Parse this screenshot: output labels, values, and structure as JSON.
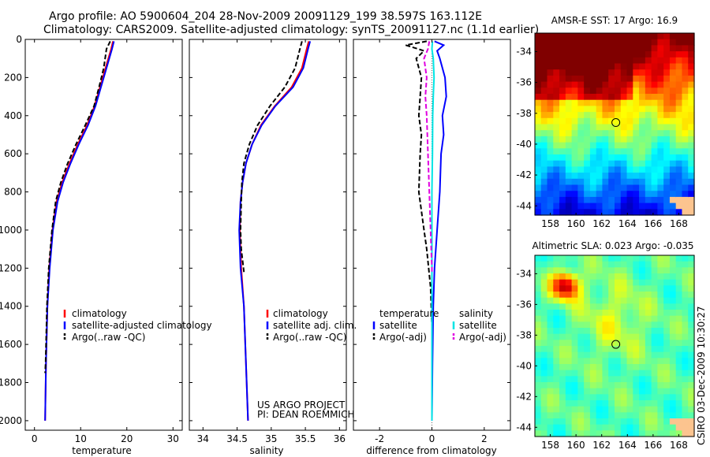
{
  "header": {
    "line1": "Argo profile: AO 5900604_204 28-Nov-2009 20091129_199 38.597S 163.112E",
    "line2": "Climatology: CARS2009. Satellite-adjusted climatology: synTS_20091127.nc (1.1d earlier)"
  },
  "side_label": "CSIRO 03-Dec-2009 10:30:27",
  "project": {
    "line1": "US ARGO PROJECT",
    "line2": "PI: DEAN ROEMMICH"
  },
  "colors": {
    "climatology": "#ff0000",
    "satellite": "#0000ff",
    "argo": "#000000",
    "sal_satellite": "#00e5e5",
    "sal_argo": "#e000e0"
  },
  "chart_data": [
    {
      "type": "line",
      "id": "temperature",
      "xlabel": "temperature",
      "xlim": [
        -2,
        32
      ],
      "ylim": [
        0,
        2050
      ],
      "xticks": [
        0,
        10,
        20,
        30
      ],
      "yticks": [
        0,
        200,
        400,
        600,
        800,
        1000,
        1200,
        1400,
        1600,
        1800,
        2000
      ],
      "legend": [
        "climatology",
        "satellite-adjusted climatology",
        "Argo(..raw -QC)"
      ],
      "series": [
        {
          "name": "climatology",
          "color": "#ff0000",
          "dash": "",
          "x": [
            17.0,
            16.6,
            15.4,
            14.2,
            13.0,
            11.4,
            9.4,
            7.6,
            6.0,
            4.8,
            3.9,
            3.2,
            2.8,
            2.5,
            2.3
          ],
          "y": [
            10,
            50,
            150,
            250,
            350,
            450,
            550,
            650,
            750,
            850,
            1000,
            1200,
            1400,
            1700,
            2000
          ]
        },
        {
          "name": "satellite-adjusted climatology",
          "color": "#0000ff",
          "dash": "",
          "x": [
            17.2,
            16.8,
            15.6,
            14.4,
            13.2,
            11.6,
            9.6,
            7.8,
            6.2,
            5.0,
            4.0,
            3.3,
            2.8,
            2.5,
            2.3
          ],
          "y": [
            10,
            50,
            150,
            250,
            350,
            450,
            550,
            650,
            750,
            850,
            1000,
            1200,
            1400,
            1700,
            2000
          ]
        },
        {
          "name": "Argo(..raw -QC)",
          "color": "#000000",
          "dash": "6,3",
          "x": [
            16.4,
            15.6,
            15.0,
            14.0,
            12.9,
            11.0,
            9.0,
            7.2,
            5.7,
            4.6,
            3.8,
            3.1,
            2.7,
            2.4,
            2.3
          ],
          "y": [
            10,
            50,
            150,
            250,
            350,
            450,
            550,
            650,
            750,
            850,
            1000,
            1200,
            1400,
            1700,
            1750
          ]
        }
      ]
    },
    {
      "type": "line",
      "id": "salinity",
      "xlabel": "salinity",
      "xlim": [
        33.8,
        36.1
      ],
      "ylim": [
        0,
        2050
      ],
      "xticks": [
        34,
        34.5,
        35,
        35.5,
        36
      ],
      "yticks": [
        0,
        200,
        400,
        600,
        800,
        1000,
        1200,
        1400,
        1600,
        1800,
        2000
      ],
      "legend": [
        "climatology",
        "satellite adj. clim.",
        "Argo(..raw -QC)"
      ],
      "series": [
        {
          "name": "climatology",
          "color": "#ff0000",
          "dash": "",
          "x": [
            35.55,
            35.52,
            35.45,
            35.3,
            35.05,
            34.85,
            34.72,
            34.63,
            34.58,
            34.55,
            34.54,
            34.56,
            34.6,
            34.63,
            34.66
          ],
          "y": [
            10,
            50,
            150,
            250,
            350,
            450,
            550,
            650,
            750,
            850,
            1000,
            1200,
            1400,
            1700,
            2000
          ]
        },
        {
          "name": "satellite adj. clim.",
          "color": "#0000ff",
          "dash": "",
          "x": [
            35.57,
            35.54,
            35.47,
            35.32,
            35.06,
            34.86,
            34.72,
            34.63,
            34.58,
            34.55,
            34.53,
            34.55,
            34.6,
            34.63,
            34.66
          ],
          "y": [
            10,
            50,
            150,
            250,
            350,
            450,
            550,
            650,
            750,
            850,
            1000,
            1200,
            1400,
            1700,
            2000
          ]
        },
        {
          "name": "Argo(..raw -QC)",
          "color": "#000000",
          "dash": "6,3",
          "x": [
            35.45,
            35.42,
            35.35,
            35.2,
            34.98,
            34.8,
            34.68,
            34.6,
            34.57,
            34.56,
            34.55,
            34.56,
            34.6
          ],
          "y": [
            10,
            50,
            150,
            250,
            350,
            450,
            550,
            650,
            750,
            850,
            1000,
            1100,
            1220
          ]
        }
      ]
    },
    {
      "type": "line",
      "id": "difference",
      "xlabel": "difference from climatology",
      "xlim": [
        -3,
        3
      ],
      "ylim": [
        0,
        2050
      ],
      "xticks": [
        -2,
        0,
        2
      ],
      "yticks": [
        0,
        200,
        400,
        600,
        800,
        1000,
        1200,
        1400,
        1600,
        1800,
        2000
      ],
      "legend_temperature": {
        "title": "temperature",
        "items": [
          "satellite",
          "Argo(-adj)"
        ]
      },
      "legend_salinity": {
        "title": "salinity",
        "items": [
          "satellite",
          "Argo(-adj)"
        ]
      },
      "series": [
        {
          "name": "temperature satellite",
          "color": "#0000ff",
          "dash": "",
          "x": [
            0.1,
            0.45,
            0.2,
            0.3,
            0.5,
            0.55,
            0.4,
            0.45,
            0.35,
            0.3,
            0.2,
            0.1,
            0.05,
            0.02,
            0.0
          ],
          "y": [
            10,
            30,
            60,
            100,
            200,
            300,
            400,
            500,
            600,
            800,
            1000,
            1200,
            1400,
            1700,
            2000
          ]
        },
        {
          "name": "temperature Argo(-adj)",
          "color": "#000000",
          "dash": "6,3",
          "x": [
            -0.2,
            -1.0,
            -0.3,
            -0.6,
            -0.4,
            -0.45,
            -0.5,
            -0.4,
            -0.45,
            -0.5,
            -0.4,
            -0.3,
            -0.2,
            -0.05,
            0.0
          ],
          "y": [
            10,
            30,
            60,
            100,
            200,
            300,
            400,
            500,
            600,
            800,
            900,
            1000,
            1100,
            1300,
            1500
          ]
        },
        {
          "name": "salinity satellite",
          "color": "#00e5e5",
          "dash": "",
          "x": [
            0.02,
            0.0,
            0.05,
            0.08,
            0.05,
            0.03,
            0.02,
            0.0,
            0.0,
            0.0,
            0.0,
            0.0
          ],
          "y": [
            10,
            50,
            100,
            200,
            300,
            400,
            600,
            800,
            1000,
            1400,
            1800,
            2000
          ]
        },
        {
          "name": "salinity Argo(-adj)",
          "color": "#e000e0",
          "dash": "6,3",
          "x": [
            -0.1,
            -0.15,
            -0.3,
            -0.2,
            -0.25,
            -0.2,
            -0.15,
            -0.1,
            -0.05,
            0.0,
            0.0
          ],
          "y": [
            10,
            50,
            100,
            200,
            300,
            400,
            600,
            800,
            1000,
            1200,
            1220
          ]
        }
      ]
    },
    {
      "type": "heatmap",
      "id": "sst_map",
      "title": "AMSR-E SST: 17 Argo: 16.9",
      "xlim": [
        156.8,
        169.2
      ],
      "ylim": [
        -44.6,
        -32.8
      ],
      "xticks": [
        158,
        160,
        162,
        164,
        166,
        168
      ],
      "yticks": [
        -34,
        -36,
        -38,
        -40,
        -42,
        -44
      ],
      "marker": {
        "lon": 163.1,
        "lat": -38.6
      },
      "colorscale": "jet"
    },
    {
      "type": "heatmap",
      "id": "sla_map",
      "title": "Altimetric SLA: 0.023 Argo: -0.035",
      "xlim": [
        156.8,
        169.2
      ],
      "ylim": [
        -44.6,
        -32.8
      ],
      "xticks": [
        158,
        160,
        162,
        164,
        166,
        168
      ],
      "yticks": [
        -34,
        -36,
        -38,
        -40,
        -42,
        -44
      ],
      "marker": {
        "lon": 163.1,
        "lat": -38.6
      },
      "colorscale": "jet"
    }
  ]
}
